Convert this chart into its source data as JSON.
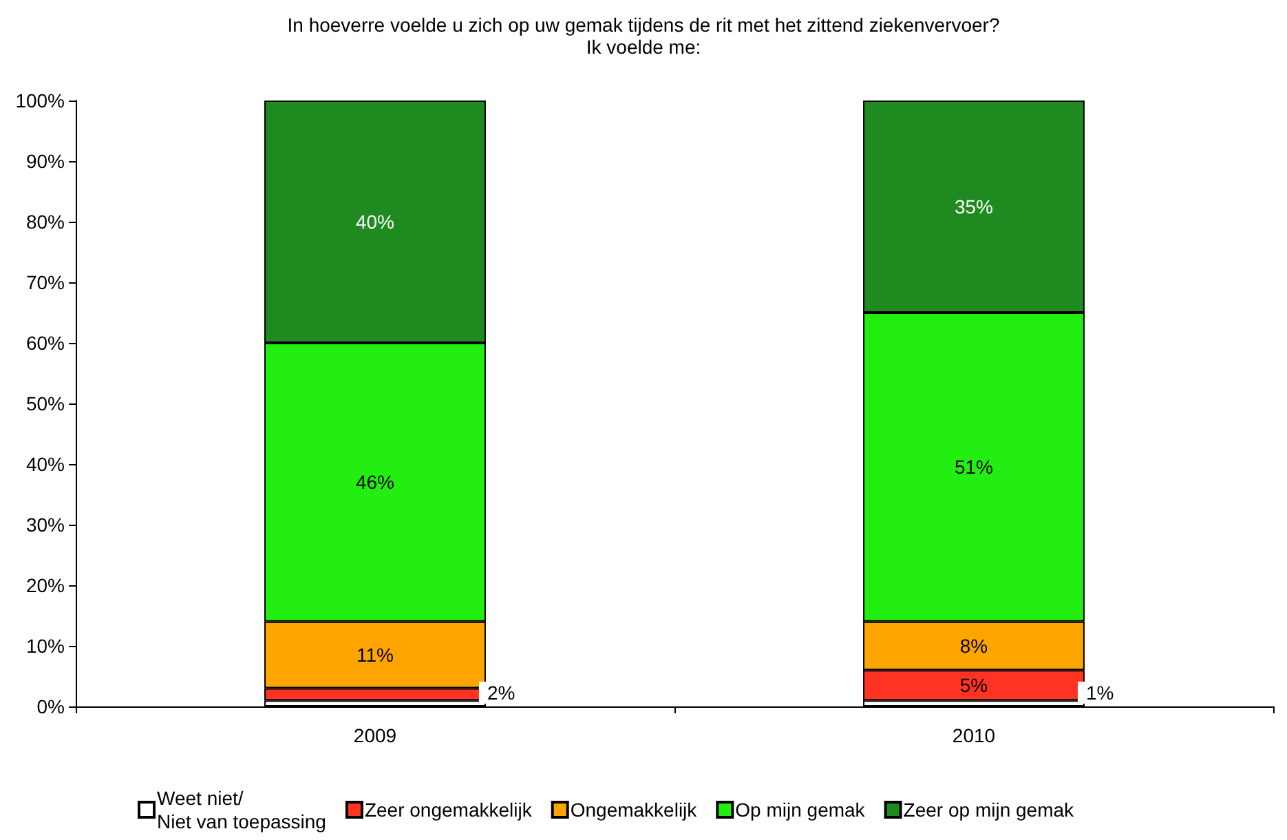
{
  "chart_data": {
    "type": "bar",
    "stacked": true,
    "title": "In hoeverre voelde u zich op uw gemak tijdens de rit met het zittend ziekenvervoer?",
    "subtitle": "Ik voelde me:",
    "categories": [
      "2009",
      "2010"
    ],
    "series": [
      {
        "name": "Weet niet/\nNiet van toepassing",
        "color": "#ffffff",
        "values": [
          1,
          1
        ],
        "value_labels": [
          null,
          "1%"
        ]
      },
      {
        "name": "Zeer ongemakkelijk",
        "color": "#ff3322",
        "values": [
          2,
          5
        ],
        "value_labels": [
          "2%",
          "5%"
        ]
      },
      {
        "name": "Ongemakkelijk",
        "color": "#ffa500",
        "values": [
          11,
          8
        ],
        "value_labels": [
          "11%",
          "8%"
        ]
      },
      {
        "name": "Op mijn gemak",
        "color": "#22ee11",
        "values": [
          46,
          51
        ],
        "value_labels": [
          "46%",
          "51%"
        ]
      },
      {
        "name": "Zeer op mijn gemak",
        "color": "#1f8a1f",
        "values": [
          40,
          35
        ],
        "value_labels": [
          "40%",
          "35%"
        ]
      }
    ],
    "ylim": [
      0,
      100
    ],
    "yticks": [
      {
        "value": 0,
        "label": "0%"
      },
      {
        "value": 10,
        "label": "10%"
      },
      {
        "value": 20,
        "label": "20%"
      },
      {
        "value": 30,
        "label": "30%"
      },
      {
        "value": 40,
        "label": "40%"
      },
      {
        "value": 50,
        "label": "50%"
      },
      {
        "value": 60,
        "label": "60%"
      },
      {
        "value": 70,
        "label": "70%"
      },
      {
        "value": 80,
        "label": "80%"
      },
      {
        "value": 90,
        "label": "90%"
      },
      {
        "value": 100,
        "label": "100%"
      }
    ],
    "grid": false,
    "legend": "bottom"
  }
}
